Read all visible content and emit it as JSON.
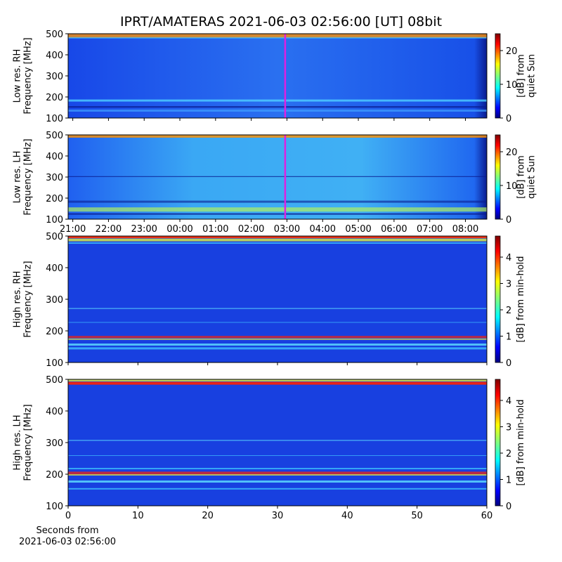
{
  "title": "IPRT/AMATERAS 2021-06-03 02:56:00 [UT]   08bit",
  "chart_data": [
    {
      "type": "heatmap",
      "ylabel": [
        "Low res. RH",
        "Frequency [MHz]"
      ],
      "ylim": [
        100,
        500
      ],
      "yticks": [
        100,
        200,
        300,
        400,
        500
      ],
      "xlim": [
        20.87,
        32.6
      ],
      "marker_x": 26.95,
      "marker_color": "#e020e0",
      "colorbar": {
        "label": [
          "[dB] from",
          "quiet Sun"
        ],
        "lim": [
          0,
          25
        ],
        "ticks": [
          0,
          10,
          20
        ]
      }
    },
    {
      "type": "heatmap",
      "ylabel": [
        "Low res. LH",
        "Frequency [MHz]"
      ],
      "ylim": [
        100,
        500
      ],
      "yticks": [
        100,
        200,
        300,
        400,
        500
      ],
      "xlim": [
        20.87,
        32.6
      ],
      "xticks": [
        {
          "value": 21,
          "label": "21:00"
        },
        {
          "value": 22,
          "label": "22:00"
        },
        {
          "value": 23,
          "label": "23:00"
        },
        {
          "value": 24,
          "label": "00:00"
        },
        {
          "value": 25,
          "label": "01:00"
        },
        {
          "value": 26,
          "label": "02:00"
        },
        {
          "value": 27,
          "label": "03:00"
        },
        {
          "value": 28,
          "label": "04:00"
        },
        {
          "value": 29,
          "label": "05:00"
        },
        {
          "value": 30,
          "label": "06:00"
        },
        {
          "value": 31,
          "label": "07:00"
        },
        {
          "value": 32,
          "label": "08:00"
        }
      ],
      "marker_x": 26.95,
      "marker_color": "#e020e0",
      "colorbar": {
        "label": [
          "[dB] from",
          "quiet Sun"
        ],
        "lim": [
          0,
          25
        ],
        "ticks": [
          0,
          10,
          20
        ]
      }
    },
    {
      "type": "heatmap",
      "ylabel": [
        "High res. RH",
        "Frequency [MHz]"
      ],
      "ylim": [
        100,
        500
      ],
      "yticks": [
        100,
        200,
        300,
        400,
        500
      ],
      "xlim": [
        0,
        60
      ],
      "colorbar": {
        "label": [
          "[dB] from min-hold"
        ],
        "lim": [
          0,
          4.8
        ],
        "ticks": [
          0,
          1,
          2,
          3,
          4
        ]
      }
    },
    {
      "type": "heatmap",
      "ylabel": [
        "High res. LH",
        "Frequency [MHz]"
      ],
      "ylim": [
        100,
        500
      ],
      "yticks": [
        100,
        200,
        300,
        400,
        500
      ],
      "xlim": [
        0,
        60
      ],
      "xticks": [
        0,
        10,
        20,
        30,
        40,
        50,
        60
      ],
      "xlabel": [
        "Seconds from",
        "2021-06-03 02:56:00"
      ],
      "colorbar": {
        "label": [
          "[dB] from min-hold"
        ],
        "lim": [
          0,
          4.8
        ],
        "ticks": [
          0,
          1,
          2,
          3,
          4
        ]
      }
    }
  ]
}
